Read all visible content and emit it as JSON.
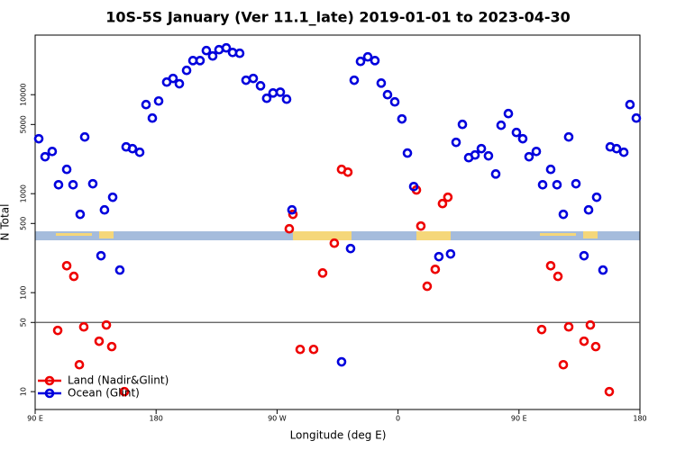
{
  "chart_data": {
    "type": "scatter",
    "title": "10S-5S January (Ver 11.1_late)   2019-01-01 to 2023-04-30",
    "x_label": "Longitude (deg E)",
    "y_label": "N Total",
    "log_y": true,
    "xlim": [
      90,
      540
    ],
    "ylim": [
      6.6,
      40000
    ],
    "xticks": [
      {
        "value": 90,
        "label": "90 E"
      },
      180,
      {
        "value": 270,
        "label": "90 W"
      },
      {
        "value": 360,
        "label": "0"
      },
      {
        "value": 450,
        "label": "90 E"
      },
      {
        "value": 540,
        "label": "180"
      }
    ],
    "yticks": [
      10,
      50,
      100,
      500,
      1000,
      5000,
      10000
    ],
    "hline": 50,
    "legend": "lower-left",
    "series": [
      {
        "name": "Land (Nadir&Glint)",
        "color": "#ee0000",
        "x": [
          106.8,
          113.5,
          118.8,
          122.9,
          126.2,
          137.6,
          143,
          147,
          156.4,
          279.1,
          281.8,
          287.2,
          297.2,
          303.9,
          312.6,
          318,
          322.7,
          373.7,
          377,
          381.7,
          387.7,
          393.1,
          397.1,
          466.9,
          473.6,
          479,
          483,
          487,
          498.4,
          503.1,
          507.1,
          517.2
        ],
        "values": [
          41.5,
          187,
          146,
          18.7,
          45.1,
          32.3,
          47.1,
          28.5,
          10,
          442,
          618,
          26.7,
          26.7,
          158,
          316,
          1760,
          1650,
          1090,
          471,
          116,
          172,
          794,
          920,
          42.4,
          187,
          146,
          18.7,
          45.1,
          32.3,
          47.1,
          28.5,
          10
        ]
      },
      {
        "name": "Ocean (Glint)",
        "color": "#0000dd",
        "x": [
          92.7,
          97.4,
          102.7,
          107.4,
          113.5,
          118.2,
          123.5,
          126.9,
          132.9,
          139,
          141.6,
          147.7,
          153,
          157.7,
          162.4,
          167.8,
          172.5,
          177.2,
          181.9,
          187.9,
          192.6,
          197.3,
          202.7,
          207.4,
          212.7,
          217.4,
          222.1,
          226.8,
          232.2,
          236.9,
          242.2,
          246.9,
          252.3,
          257.7,
          262.3,
          267,
          272.4,
          277.1,
          281.1,
          318,
          324.7,
          327.4,
          332.1,
          337.5,
          342.8,
          347.5,
          352.2,
          357.6,
          362.9,
          367,
          371.7,
          390.4,
          399.1,
          403.2,
          407.9,
          412.6,
          417.3,
          422,
          427.3,
          432.7,
          436.7,
          442.1,
          448.1,
          452.8,
          457.5,
          462.9,
          467.6,
          473.6,
          478.3,
          483,
          487,
          492.4,
          498.4,
          501.8,
          507.8,
          512.5,
          517.9,
          522.6,
          528,
          532.6,
          537.3
        ],
        "values": [
          3590,
          2360,
          2670,
          1230,
          1760,
          1230,
          618,
          3740,
          1260,
          236,
          686,
          920,
          169,
          2970,
          2850,
          2620,
          7940,
          5800,
          8630,
          13400,
          14600,
          12900,
          17600,
          22100,
          22100,
          27900,
          24600,
          28500,
          29700,
          26700,
          26200,
          14000,
          14600,
          12300,
          9200,
          10400,
          10600,
          9010,
          686,
          20,
          279,
          14000,
          21700,
          24100,
          22100,
          13100,
          10000,
          8460,
          5690,
          2570,
          1180,
          231,
          246,
          3300,
          5010,
          2310,
          2460,
          2850,
          2410,
          1580,
          4910,
          6440,
          4150,
          3590,
          2360,
          2670,
          1230,
          1760,
          1230,
          618,
          3740,
          1260,
          236,
          686,
          920,
          169,
          2970,
          2850,
          2620,
          7940,
          5800
        ]
      }
    ]
  }
}
